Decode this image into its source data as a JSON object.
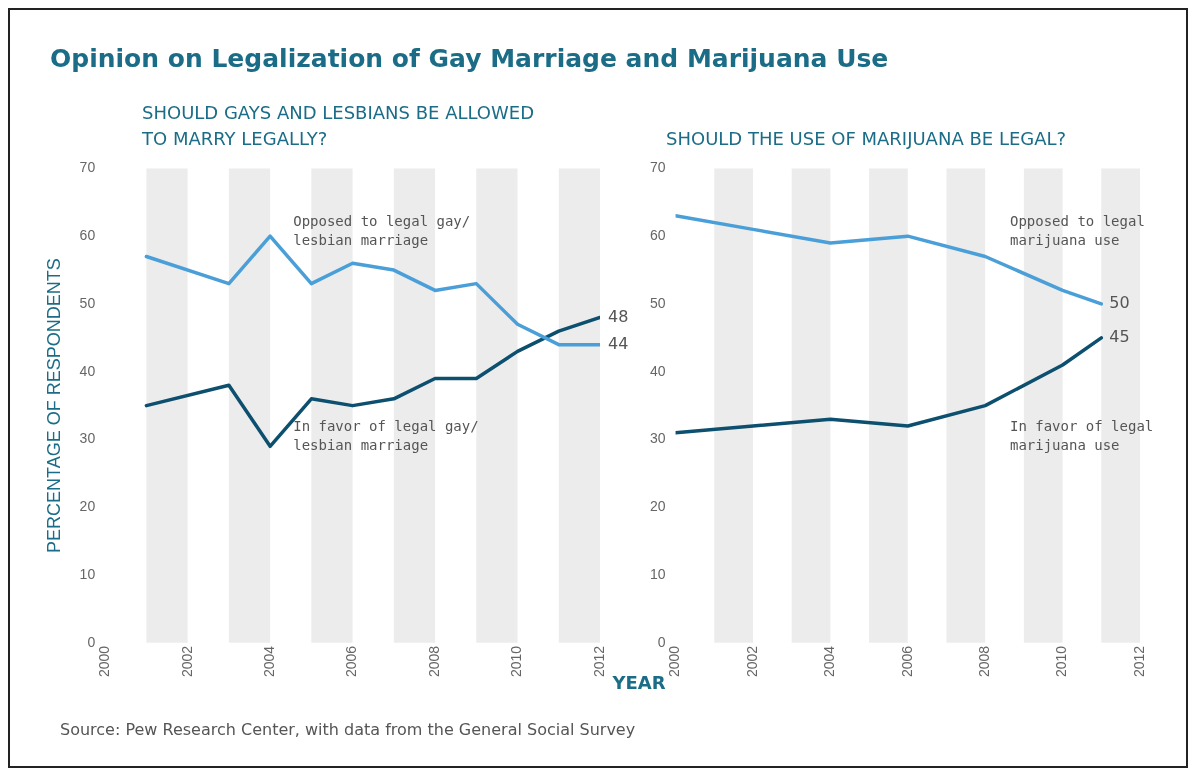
{
  "chart_data": [
    {
      "type": "line",
      "title": "Opinion on Legalization of Gay Marriage and Marijuana Use",
      "subtitle": "SHOULD GAYS AND LESBIANS BE ALLOWED TO MARRY LEGALLY?",
      "ylabel": "PERCENTAGE OF RESPONDENTS",
      "xlabel": "YEAR",
      "x": [
        2001,
        2003,
        2004,
        2005,
        2006,
        2007,
        2008,
        2009,
        2010,
        2011,
        2012
      ],
      "series": [
        {
          "name": "Opposed to legal gay/ lesbian marriage",
          "color": "#4a9fd8",
          "values": [
            57,
            53,
            60,
            53,
            56,
            55,
            52,
            53,
            47,
            44,
            44
          ],
          "value_labels": [
            null,
            null,
            null,
            null,
            null,
            null,
            null,
            null,
            null,
            null,
            "44"
          ]
        },
        {
          "name": "In favor of legal gay/ lesbian marriage",
          "color": "#0d4f6e",
          "values": [
            35,
            38,
            29,
            36,
            35,
            36,
            39,
            39,
            43,
            46,
            48
          ],
          "value_labels": [
            null,
            null,
            null,
            null,
            null,
            null,
            null,
            null,
            null,
            null,
            "48"
          ]
        }
      ],
      "xlim": [
        2000,
        2012
      ],
      "xticks": [
        2000,
        2002,
        2004,
        2006,
        2008,
        2010,
        2012
      ],
      "ylim": [
        0,
        70
      ],
      "yticks": [
        0,
        10,
        20,
        30,
        40,
        50,
        60,
        70
      ],
      "bands": [
        {
          "axis": "x",
          "from": 2001,
          "to": 2002,
          "color": "#ececec"
        },
        {
          "axis": "x",
          "from": 2003,
          "to": 2004,
          "color": "#ececec"
        },
        {
          "axis": "x",
          "from": 2005,
          "to": 2006,
          "color": "#ececec"
        },
        {
          "axis": "x",
          "from": 2007,
          "to": 2008,
          "color": "#ececec"
        },
        {
          "axis": "x",
          "from": 2009,
          "to": 2010,
          "color": "#ececec"
        },
        {
          "axis": "x",
          "from": 2011,
          "to": 2012,
          "color": "#ececec"
        }
      ],
      "grid": false,
      "legend": false,
      "marker": "none",
      "line_style": "solid",
      "annotations": [
        "Source: Pew Research Center, with data from the General Social Survey"
      ]
    },
    {
      "type": "line",
      "subtitle": "SHOULD THE USE OF MARIJUANA BE LEGAL?",
      "x": [
        2000,
        2002,
        2004,
        2006,
        2008,
        2010,
        2011
      ],
      "series": [
        {
          "name": "Opposed to legal marijuana use",
          "color": "#4a9fd8",
          "values": [
            63,
            61,
            59,
            60,
            57,
            52,
            50
          ],
          "value_labels": [
            null,
            null,
            null,
            null,
            null,
            null,
            "50"
          ]
        },
        {
          "name": "In favor of legal marijuana use",
          "color": "#0d4f6e",
          "values": [
            31,
            32,
            33,
            32,
            35,
            41,
            45
          ],
          "value_labels": [
            null,
            null,
            null,
            null,
            null,
            null,
            "45"
          ]
        }
      ],
      "xlim": [
        2000,
        2012
      ],
      "xticks": [
        2000,
        2002,
        2004,
        2006,
        2008,
        2010,
        2012
      ],
      "ylim": [
        0,
        70
      ],
      "yticks": [
        0,
        10,
        20,
        30,
        40,
        50,
        60,
        70
      ],
      "bands": [
        {
          "axis": "x",
          "from": 2001,
          "to": 2002,
          "color": "#ececec"
        },
        {
          "axis": "x",
          "from": 2003,
          "to": 2004,
          "color": "#ececec"
        },
        {
          "axis": "x",
          "from": 2005,
          "to": 2006,
          "color": "#ececec"
        },
        {
          "axis": "x",
          "from": 2007,
          "to": 2008,
          "color": "#ececec"
        },
        {
          "axis": "x",
          "from": 2009,
          "to": 2010,
          "color": "#ececec"
        },
        {
          "axis": "x",
          "from": 2011,
          "to": 2012,
          "color": "#ececec"
        }
      ],
      "grid": false,
      "legend": false,
      "marker": "none",
      "line_style": "solid"
    }
  ]
}
